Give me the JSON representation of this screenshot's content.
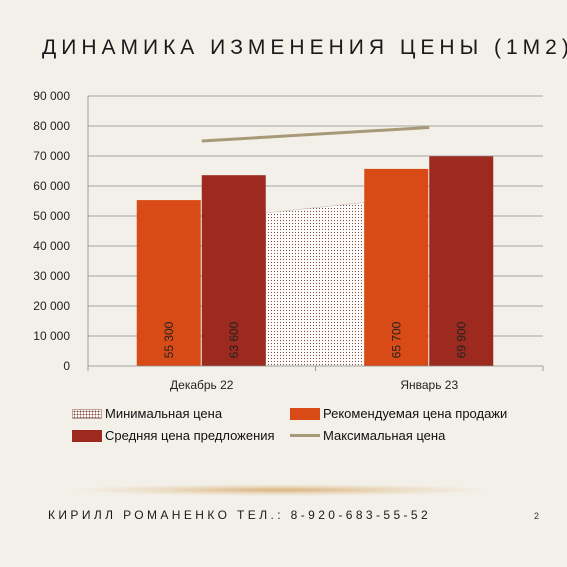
{
  "slide": {
    "title": "ДИНАМИКА ИЗМЕНЕНИЯ ЦЕНЫ (1М2)",
    "footer": "КИРИЛЛ РОМАНЕНКО ТЕЛ.: 8-920-683-55-52",
    "page_number": "2"
  },
  "colors": {
    "background": "#f3f0ea",
    "recommended": "#d84b16",
    "average": "#9c2a1f",
    "maximum": "#a89a78",
    "minimum_fill": "#8a4a3a"
  },
  "chart_data": {
    "type": "bar",
    "categories": [
      "Декабрь 22",
      "Январь 23"
    ],
    "ylim": [
      0,
      90000
    ],
    "yticks": [
      0,
      10000,
      20000,
      30000,
      40000,
      50000,
      60000,
      70000,
      80000,
      90000
    ],
    "ytick_labels": [
      "0",
      "10 000",
      "20 000",
      "30 000",
      "40 000",
      "50 000",
      "60 000",
      "70 000",
      "80 000",
      "90 000"
    ],
    "grid": true,
    "legend_position": "bottom",
    "series": [
      {
        "name": "Минимальная цена",
        "kind": "area",
        "values": [
          51000,
          54500
        ]
      },
      {
        "name": "Рекомендуемая цена продажи",
        "kind": "bar",
        "values": [
          55300,
          65700
        ],
        "labels": [
          "55 300",
          "65 700"
        ]
      },
      {
        "name": "Средняя цена предложения",
        "kind": "bar",
        "values": [
          63600,
          69900
        ],
        "labels": [
          "63 600",
          "69 900"
        ]
      },
      {
        "name": "Максимальная цена",
        "kind": "line",
        "values": [
          75000,
          79500
        ]
      }
    ]
  }
}
